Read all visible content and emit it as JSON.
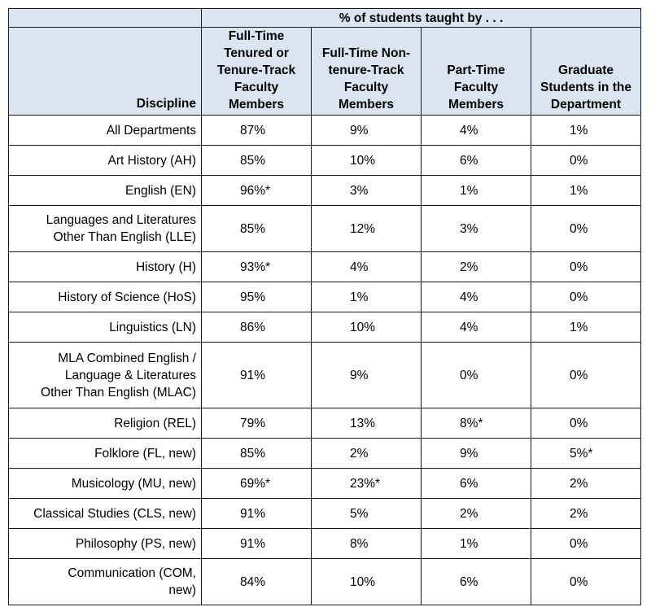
{
  "header": {
    "group_label": "% of students taught by . . .",
    "corner_label": "Discipline",
    "columns": [
      "Full-Time\nTenured or\nTenure-Track\nFaculty\nMembers",
      "Full-Time Non-\ntenure-Track\nFaculty\nMembers",
      "Part-Time\nFaculty\nMembers",
      "Graduate\nStudents in the\nDepartment"
    ]
  },
  "rows": [
    {
      "discipline": "All Departments",
      "values": [
        "87%",
        "9%",
        "4%",
        "1%"
      ]
    },
    {
      "discipline": "Art History (AH)",
      "values": [
        "85%",
        "10%",
        "6%",
        "0%"
      ]
    },
    {
      "discipline": "English (EN)",
      "values": [
        "96%*",
        "3%",
        "1%",
        "1%"
      ]
    },
    {
      "discipline": "Languages and Literatures\nOther Than English (LLE)",
      "values": [
        "85%",
        "12%",
        "3%",
        "0%"
      ]
    },
    {
      "discipline": "History (H)",
      "values": [
        "93%*",
        "4%",
        "2%",
        "0%"
      ]
    },
    {
      "discipline": "History of Science (HoS)",
      "values": [
        "95%",
        "1%",
        "4%",
        "0%"
      ]
    },
    {
      "discipline": "Linguistics (LN)",
      "values": [
        "86%",
        "10%",
        "4%",
        "1%"
      ]
    },
    {
      "discipline": "MLA Combined English /\nLanguage & Literatures\nOther Than English (MLAC)",
      "values": [
        "91%",
        "9%",
        "0%",
        "0%"
      ]
    },
    {
      "discipline": "Religion (REL)",
      "values": [
        "79%",
        "13%",
        "8%*",
        "0%"
      ]
    },
    {
      "discipline": "Folklore (FL, new)",
      "values": [
        "85%",
        "2%",
        "9%",
        "5%*"
      ]
    },
    {
      "discipline": "Musicology (MU, new)",
      "values": [
        "69%*",
        "23%*",
        "6%",
        "2%"
      ]
    },
    {
      "discipline": "Classical Studies (CLS, new)",
      "values": [
        "91%",
        "5%",
        "2%",
        "2%"
      ]
    },
    {
      "discipline": "Philosophy (PS, new)",
      "values": [
        "91%",
        "8%",
        "1%",
        "0%"
      ]
    },
    {
      "discipline": "Communication (COM,\nnew)",
      "values": [
        "84%",
        "10%",
        "6%",
        "0%"
      ]
    }
  ],
  "chart_data": {
    "type": "table",
    "title": "% of students taught by . . .",
    "row_header": "Discipline",
    "columns": [
      "Full-Time Tenured or Tenure-Track Faculty Members",
      "Full-Time Non-tenure-Track Faculty Members",
      "Part-Time Faculty Members",
      "Graduate Students in the Department"
    ],
    "rows": [
      {
        "discipline": "All Departments",
        "values": [
          "87%",
          "9%",
          "4%",
          "1%"
        ]
      },
      {
        "discipline": "Art History (AH)",
        "values": [
          "85%",
          "10%",
          "6%",
          "0%"
        ]
      },
      {
        "discipline": "English (EN)",
        "values": [
          "96%*",
          "3%",
          "1%",
          "1%"
        ]
      },
      {
        "discipline": "Languages and Literatures Other Than English (LLE)",
        "values": [
          "85%",
          "12%",
          "3%",
          "0%"
        ]
      },
      {
        "discipline": "History (H)",
        "values": [
          "93%*",
          "4%",
          "2%",
          "0%"
        ]
      },
      {
        "discipline": "History of Science (HoS)",
        "values": [
          "95%",
          "1%",
          "4%",
          "0%"
        ]
      },
      {
        "discipline": "Linguistics (LN)",
        "values": [
          "86%",
          "10%",
          "4%",
          "1%"
        ]
      },
      {
        "discipline": "MLA Combined English / Language & Literatures Other Than English (MLAC)",
        "values": [
          "91%",
          "9%",
          "0%",
          "0%"
        ]
      },
      {
        "discipline": "Religion (REL)",
        "values": [
          "79%",
          "13%",
          "8%*",
          "0%"
        ]
      },
      {
        "discipline": "Folklore (FL, new)",
        "values": [
          "85%",
          "2%",
          "9%",
          "5%*"
        ]
      },
      {
        "discipline": "Musicology (MU, new)",
        "values": [
          "69%*",
          "23%*",
          "6%",
          "2%"
        ]
      },
      {
        "discipline": "Classical Studies (CLS, new)",
        "values": [
          "91%",
          "5%",
          "2%",
          "2%"
        ]
      },
      {
        "discipline": "Philosophy (PS, new)",
        "values": [
          "91%",
          "8%",
          "1%",
          "0%"
        ]
      },
      {
        "discipline": "Communication (COM, new)",
        "values": [
          "84%",
          "10%",
          "6%",
          "0%"
        ]
      }
    ],
    "header_fill": "#dbe5f1"
  }
}
